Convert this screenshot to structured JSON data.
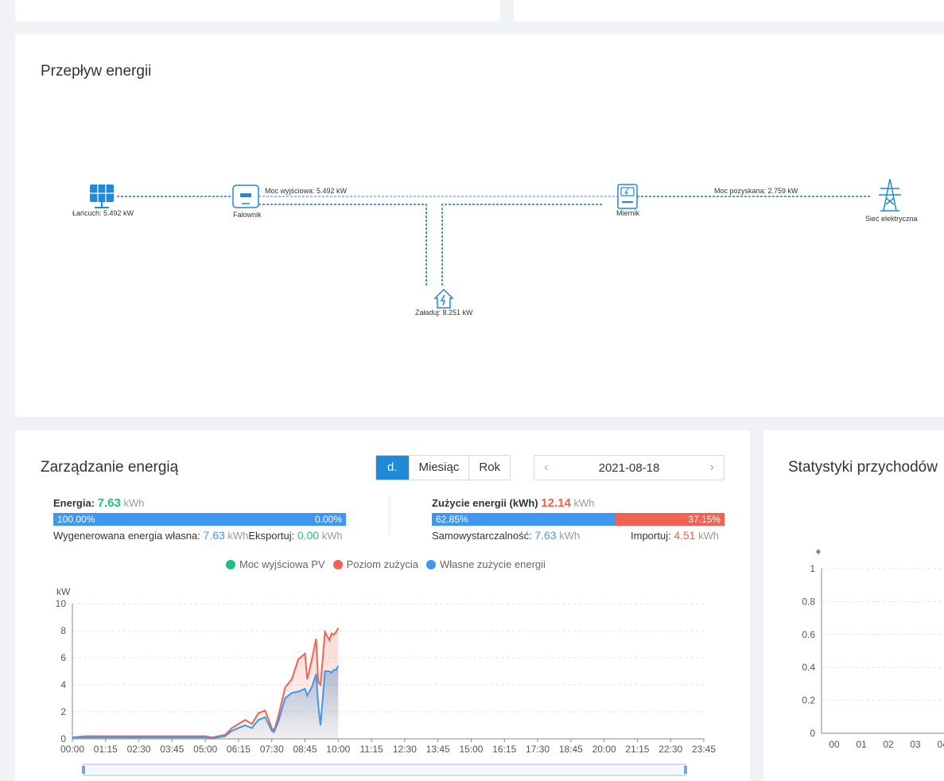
{
  "energy_flow": {
    "title": "Przepływ energii",
    "string_label": "Łańcuch: 5.492 kW",
    "inverter_label": "Falownik",
    "output_label": "Moc wyjściowa: 5.492 kW",
    "meter_label": "Miernik",
    "grid_power_label": "Moc pozyskana: 2.759 kW",
    "grid_label": "Sieć elektryczna",
    "load_label": "Załaduj: 8.251 kW"
  },
  "energy_mgmt": {
    "title": "Zarządzanie energią",
    "period_buttons": [
      "d.",
      "Miesiąc",
      "Rok"
    ],
    "active_period": "d.",
    "date": "2021-08-18",
    "prev_icon": "chevron-left-icon",
    "next_icon": "chevron-right-icon",
    "energy_label": "Energia:",
    "energy_value": "7.63",
    "energy_unit": "kWh",
    "energy_bar_left": "100.00%",
    "energy_bar_right": "0.00%",
    "self_gen_label": "Wygenerowana energia własna:",
    "self_gen_value": "7.63",
    "self_gen_unit": "kWh",
    "export_label": "Eksportuj:",
    "export_value": "0.00",
    "export_unit": "kWh",
    "consumption_label": "Zużycie energii (kWh)",
    "consumption_value": "12.14",
    "consumption_unit": "kWh",
    "cons_bar_left": "62.85%",
    "cons_bar_right": "37.15%",
    "cons_bar_fraction": 0.6285,
    "self_suff_label": "Samowystarczalność:",
    "self_suff_value": "7.63",
    "self_suff_unit": "kWh",
    "import_label": "Importuj:",
    "import_value": "4.51",
    "import_unit": "kWh"
  },
  "revenue": {
    "title": "Statystyki przychodów"
  },
  "colors": {
    "blue": "#3f97f0",
    "red": "#ef6352",
    "green": "#1ec27d",
    "accent": "#1f8ad7",
    "flow_line": "#1f7ac9"
  },
  "chart_data": [
    {
      "type": "line",
      "ylabel": "kW",
      "ylim": [
        0,
        10
      ],
      "yticks": [
        0,
        2,
        4,
        6,
        8,
        10
      ],
      "xticks": [
        "00:00",
        "01:15",
        "02:30",
        "03:45",
        "05:00",
        "06:15",
        "07:30",
        "08:45",
        "10:00",
        "11:15",
        "12:30",
        "13:45",
        "15:00",
        "16:15",
        "17:30",
        "18:45",
        "20:00",
        "21:15",
        "22:30",
        "23:45"
      ],
      "legend": [
        "Moc wyjściowa PV",
        "Poziom zużycia",
        "Własne zużycie energii"
      ],
      "grid": true,
      "series": [
        {
          "name": "Poziom zużycia",
          "x": [
            "00:00",
            "00:30",
            "01:00",
            "02:00",
            "03:00",
            "04:00",
            "05:00",
            "05:15",
            "05:45",
            "06:00",
            "06:30",
            "06:45",
            "07:00",
            "07:15",
            "07:30",
            "07:35",
            "07:45",
            "08:00",
            "08:15",
            "08:30",
            "08:45",
            "08:50",
            "09:00",
            "09:10",
            "09:15",
            "09:20",
            "09:30",
            "09:40",
            "09:45",
            "09:50",
            "09:55",
            "10:00"
          ],
          "values": [
            0.1,
            0.2,
            0.2,
            0.2,
            0.2,
            0.2,
            0.2,
            0.1,
            0.3,
            0.8,
            1.4,
            1.1,
            1.9,
            2.1,
            0.8,
            0.6,
            1.7,
            3.8,
            4.4,
            5.9,
            6.3,
            4.4,
            5.8,
            7.4,
            4.2,
            4.0,
            7.9,
            7.3,
            7.8,
            7.7,
            7.9,
            8.2
          ]
        },
        {
          "name": "Własne zużycie energii",
          "x": [
            "00:00",
            "00:30",
            "01:00",
            "02:00",
            "03:00",
            "04:00",
            "05:00",
            "05:15",
            "05:45",
            "06:00",
            "06:30",
            "06:45",
            "07:00",
            "07:15",
            "07:30",
            "07:35",
            "07:45",
            "08:00",
            "08:15",
            "08:30",
            "08:45",
            "08:50",
            "09:00",
            "09:10",
            "09:15",
            "09:20",
            "09:30",
            "09:40",
            "09:45",
            "09:50",
            "09:55",
            "10:00"
          ],
          "values": [
            0.1,
            0.1,
            0.1,
            0.1,
            0.1,
            0.1,
            0.1,
            0.05,
            0.2,
            0.6,
            1.0,
            0.8,
            1.4,
            1.6,
            0.6,
            0.5,
            1.3,
            3.0,
            3.4,
            3.5,
            3.7,
            3.2,
            3.8,
            4.8,
            2.5,
            1.0,
            5.0,
            5.0,
            4.9,
            5.1,
            5.1,
            5.4
          ]
        }
      ]
    },
    {
      "type": "bar",
      "ylabel": "¥",
      "ylim": [
        0,
        1
      ],
      "yticks": [
        "0",
        "0.2",
        "0.4",
        "0.6",
        "0.8",
        "1"
      ],
      "xticks": [
        "00",
        "01",
        "02",
        "03",
        "04"
      ],
      "grid": true
    }
  ]
}
